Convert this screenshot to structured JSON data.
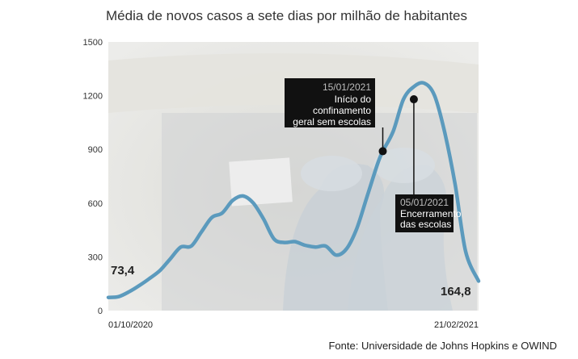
{
  "title": "Média de novos casos a sete dias por milhão de habitantes",
  "source": "Fonte: Universidade de Johns Hopkins e OWIND",
  "colors": {
    "line": "#5b9abd",
    "photo_bg": "#e8e8e4",
    "annotation_bg": "#111111"
  },
  "chart_data": {
    "type": "line",
    "title": "Média de novos casos a sete dias por milhão de habitantes",
    "xlabel": "",
    "ylabel": "",
    "x_tick_labels": [
      "01/10/2020",
      "21/02/2021"
    ],
    "y_ticks": [
      0,
      300,
      600,
      900,
      1200,
      1500
    ],
    "y_tick_labels": [
      "0",
      "300",
      "600",
      "900",
      "1200",
      "1500"
    ],
    "ylim": [
      0,
      1500
    ],
    "grid": false,
    "series": [
      {
        "x": [
          "2020-10-01",
          "2020-10-05",
          "2020-10-09",
          "2020-10-13",
          "2020-10-17",
          "2020-10-21",
          "2020-10-25",
          "2020-10-29",
          "2020-11-02",
          "2020-11-06",
          "2020-11-10",
          "2020-11-14",
          "2020-11-18",
          "2020-11-22",
          "2020-11-26",
          "2020-11-30",
          "2020-12-04",
          "2020-12-08",
          "2020-12-12",
          "2020-12-16",
          "2020-12-20",
          "2020-12-24",
          "2020-12-28",
          "2021-01-01",
          "2021-01-05",
          "2021-01-09",
          "2021-01-13",
          "2021-01-15",
          "2021-01-19",
          "2021-01-23",
          "2021-01-27",
          "2021-01-31",
          "2021-02-04",
          "2021-02-08",
          "2021-02-12",
          "2021-02-16",
          "2021-02-21"
        ],
        "values": [
          73.4,
          78,
          105,
          140,
          180,
          225,
          290,
          355,
          360,
          440,
          520,
          545,
          615,
          640,
          600,
          510,
          400,
          380,
          385,
          365,
          355,
          360,
          310,
          345,
          460,
          640,
          820,
          890,
          1000,
          1180,
          1250,
          1270,
          1200,
          990,
          700,
          330,
          164.8
        ]
      }
    ],
    "data_labels": [
      "73,4",
      "164,8"
    ],
    "annotations": [
      {
        "date": "15/01/2021",
        "text": [
          "Início do",
          "confinamento",
          "geral sem escolas"
        ],
        "x": "2021-01-15",
        "y": 890
      },
      {
        "date": "05/01/2021",
        "text": [
          "Encerramento",
          "das escolas"
        ],
        "x": "2021-01-27",
        "y": 1180
      }
    ]
  }
}
